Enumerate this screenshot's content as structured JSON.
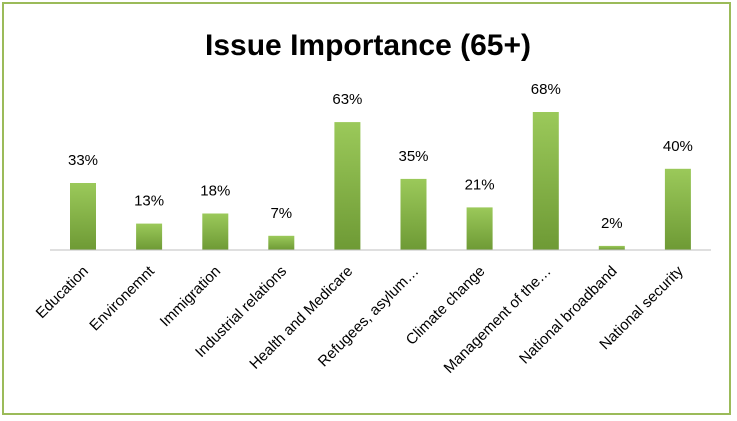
{
  "chart_data": {
    "type": "bar",
    "title": "Issue Importance (65+)",
    "xlabel": "",
    "ylabel": "",
    "categories": [
      "Education",
      "Environemnt",
      "Immigration",
      "Industrial relations",
      "Health and Medicare",
      "Refugees, asylum…",
      "Climate change",
      "Management of the…",
      "National broadband",
      "National security"
    ],
    "values": [
      33,
      13,
      18,
      7,
      63,
      35,
      21,
      68,
      2,
      40
    ],
    "value_labels": [
      "33%",
      "13%",
      "18%",
      "7%",
      "63%",
      "35%",
      "21%",
      "68%",
      "2%",
      "40%"
    ],
    "ylim": [
      0,
      70
    ],
    "grid": false,
    "legend": "none",
    "colors": {
      "bar_top": "#9bc95a",
      "bar_bottom": "#6e9a35",
      "border": "#9bbb59",
      "axis": "#bfbfbf"
    }
  }
}
